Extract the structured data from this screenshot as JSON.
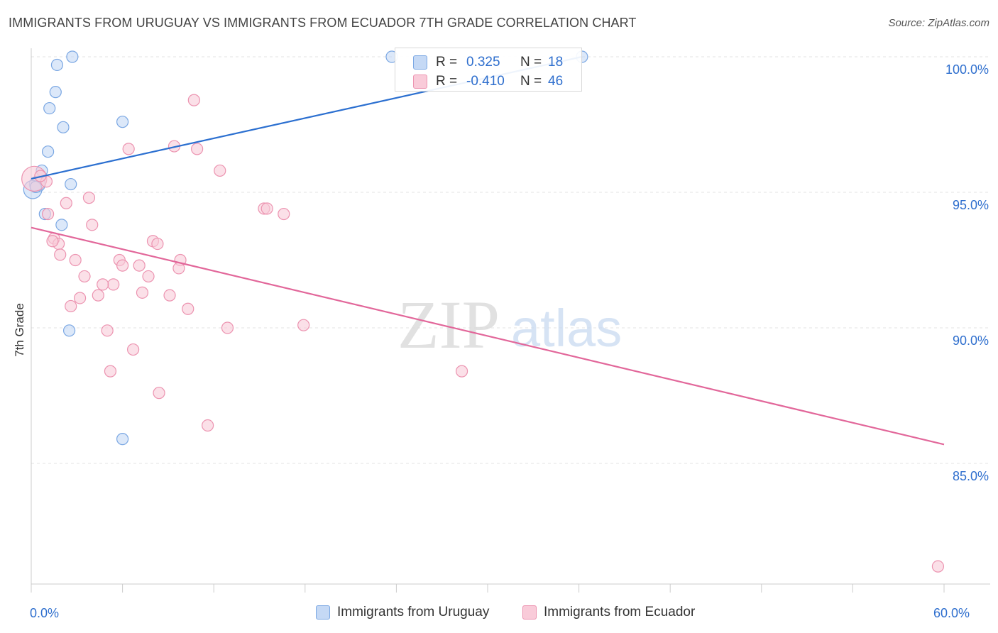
{
  "header": {
    "title": "IMMIGRANTS FROM URUGUAY VS IMMIGRANTS FROM ECUADOR 7TH GRADE CORRELATION CHART",
    "source": "Source: ZipAtlas.com"
  },
  "watermark": {
    "zip": "ZIP",
    "atlas": "atlas"
  },
  "colors": {
    "blue_fill": "#c5d9f5",
    "blue_stroke": "#7aa7e3",
    "blue_line": "#2b6fd0",
    "pink_fill": "#f9cbd9",
    "pink_stroke": "#ec93b0",
    "pink_line": "#e2679a",
    "value_text": "#2f6fce",
    "grid": "#e3e3e3"
  },
  "stats_legend": {
    "rows": [
      {
        "r_label": "R =",
        "r_value": "0.325",
        "n_label": "N =",
        "n_value": "18",
        "series": "uruguay"
      },
      {
        "r_label": "R =",
        "r_value": "-0.410",
        "n_label": "N =",
        "n_value": "46",
        "series": "ecuador"
      }
    ]
  },
  "chart_data": {
    "type": "scatter",
    "title": "IMMIGRANTS FROM URUGUAY VS IMMIGRANTS FROM ECUADOR 7TH GRADE CORRELATION CHART",
    "xlabel": "",
    "ylabel": "7th Grade",
    "xlim": [
      0,
      60
    ],
    "ylim": [
      80.5,
      100.5
    ],
    "x_tick_labels": [
      {
        "value": 0,
        "label": "0.0%"
      },
      {
        "value": 60,
        "label": "60.0%"
      }
    ],
    "x_minor_ticks": [
      0,
      6,
      12,
      18,
      24,
      30,
      36,
      42,
      48,
      54,
      60
    ],
    "y_ticks": [
      {
        "value": 100,
        "label": "100.0%"
      },
      {
        "value": 95,
        "label": "95.0%"
      },
      {
        "value": 90,
        "label": "90.0%"
      },
      {
        "value": 85,
        "label": "85.0%"
      }
    ],
    "grid": true,
    "legend": [
      "Immigrants from Uruguay",
      "Immigrants from Ecuador"
    ],
    "series": [
      {
        "name": "Immigrants from Uruguay",
        "key": "uruguay",
        "r": 0.325,
        "n": 18,
        "trend": {
          "x": [
            0,
            36.2
          ],
          "y": [
            95.5,
            100.0
          ]
        },
        "points": [
          {
            "x": 2.7,
            "y": 100.0,
            "s": 1
          },
          {
            "x": 1.7,
            "y": 99.7,
            "s": 1
          },
          {
            "x": 1.6,
            "y": 98.7,
            "s": 1
          },
          {
            "x": 1.2,
            "y": 98.1,
            "s": 1
          },
          {
            "x": 2.1,
            "y": 97.4,
            "s": 1
          },
          {
            "x": 6.0,
            "y": 97.6,
            "s": 1
          },
          {
            "x": 1.1,
            "y": 96.5,
            "s": 1
          },
          {
            "x": 0.7,
            "y": 95.8,
            "s": 1
          },
          {
            "x": 0.4,
            "y": 95.3,
            "s": 1.4
          },
          {
            "x": 2.6,
            "y": 95.3,
            "s": 1
          },
          {
            "x": 0.1,
            "y": 95.1,
            "s": 1.6
          },
          {
            "x": 0.9,
            "y": 94.2,
            "s": 1
          },
          {
            "x": 2.0,
            "y": 93.8,
            "s": 1
          },
          {
            "x": 2.5,
            "y": 89.9,
            "s": 1
          },
          {
            "x": 6.0,
            "y": 85.9,
            "s": 1
          },
          {
            "x": 23.7,
            "y": 100.0,
            "s": 1
          },
          {
            "x": 36.2,
            "y": 100.0,
            "s": 1
          },
          {
            "x": 0.3,
            "y": 95.2,
            "s": 1
          }
        ]
      },
      {
        "name": "Immigrants from Ecuador",
        "key": "ecuador",
        "r": -0.41,
        "n": 46,
        "trend": {
          "x": [
            0,
            60
          ],
          "y": [
            93.7,
            85.7
          ]
        },
        "points": [
          {
            "x": 10.7,
            "y": 98.4,
            "s": 1
          },
          {
            "x": 6.4,
            "y": 96.6,
            "s": 1
          },
          {
            "x": 9.4,
            "y": 96.7,
            "s": 1
          },
          {
            "x": 10.9,
            "y": 96.6,
            "s": 1
          },
          {
            "x": 12.4,
            "y": 95.8,
            "s": 1
          },
          {
            "x": 0.2,
            "y": 95.5,
            "s": 2.2
          },
          {
            "x": 3.8,
            "y": 94.8,
            "s": 1
          },
          {
            "x": 2.3,
            "y": 94.6,
            "s": 1
          },
          {
            "x": 15.3,
            "y": 94.4,
            "s": 1
          },
          {
            "x": 15.5,
            "y": 94.4,
            "s": 1
          },
          {
            "x": 16.6,
            "y": 94.2,
            "s": 1
          },
          {
            "x": 1.1,
            "y": 94.2,
            "s": 1
          },
          {
            "x": 4.0,
            "y": 93.8,
            "s": 1
          },
          {
            "x": 1.5,
            "y": 93.3,
            "s": 1
          },
          {
            "x": 8.0,
            "y": 93.2,
            "s": 1
          },
          {
            "x": 8.3,
            "y": 93.1,
            "s": 1
          },
          {
            "x": 1.8,
            "y": 93.1,
            "s": 1
          },
          {
            "x": 1.9,
            "y": 92.7,
            "s": 1
          },
          {
            "x": 2.9,
            "y": 92.5,
            "s": 1
          },
          {
            "x": 5.8,
            "y": 92.5,
            "s": 1
          },
          {
            "x": 9.8,
            "y": 92.5,
            "s": 1
          },
          {
            "x": 6.0,
            "y": 92.3,
            "s": 1
          },
          {
            "x": 7.1,
            "y": 92.3,
            "s": 1
          },
          {
            "x": 9.7,
            "y": 92.2,
            "s": 1
          },
          {
            "x": 7.7,
            "y": 91.9,
            "s": 1
          },
          {
            "x": 3.5,
            "y": 91.9,
            "s": 1
          },
          {
            "x": 5.4,
            "y": 91.6,
            "s": 1
          },
          {
            "x": 4.7,
            "y": 91.6,
            "s": 1
          },
          {
            "x": 7.3,
            "y": 91.3,
            "s": 1
          },
          {
            "x": 4.4,
            "y": 91.2,
            "s": 1
          },
          {
            "x": 9.1,
            "y": 91.2,
            "s": 1
          },
          {
            "x": 3.2,
            "y": 91.1,
            "s": 1
          },
          {
            "x": 2.6,
            "y": 90.8,
            "s": 1
          },
          {
            "x": 10.3,
            "y": 90.7,
            "s": 1
          },
          {
            "x": 5.0,
            "y": 89.9,
            "s": 1
          },
          {
            "x": 12.9,
            "y": 90.0,
            "s": 1
          },
          {
            "x": 17.9,
            "y": 90.1,
            "s": 1
          },
          {
            "x": 6.7,
            "y": 89.2,
            "s": 1
          },
          {
            "x": 5.2,
            "y": 88.4,
            "s": 1
          },
          {
            "x": 28.3,
            "y": 88.4,
            "s": 1
          },
          {
            "x": 8.4,
            "y": 87.6,
            "s": 1
          },
          {
            "x": 11.6,
            "y": 86.4,
            "s": 1
          },
          {
            "x": 59.6,
            "y": 81.2,
            "s": 1
          },
          {
            "x": 1.0,
            "y": 95.4,
            "s": 1
          },
          {
            "x": 1.4,
            "y": 93.2,
            "s": 1
          },
          {
            "x": 0.6,
            "y": 95.6,
            "s": 1
          }
        ]
      }
    ]
  }
}
